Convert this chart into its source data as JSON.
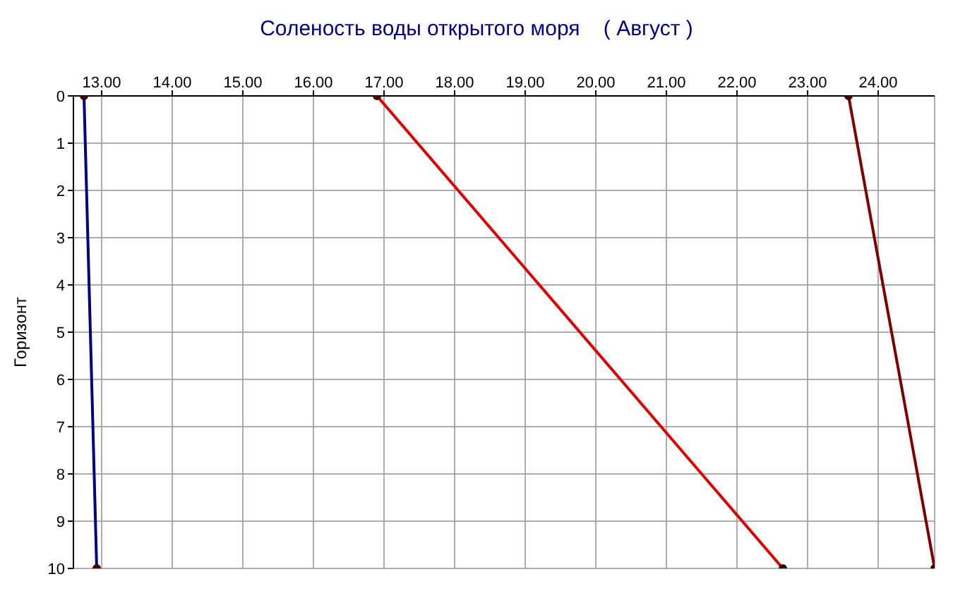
{
  "chart_data": {
    "type": "line",
    "title": "Соленость воды открытого моря    ( Август )",
    "ylabel": "Горизонт",
    "series": [
      {
        "color": "#000080",
        "x": [
          12.75,
          12.93
        ],
        "values": [
          0,
          10
        ]
      },
      {
        "color": "#e00000",
        "x": [
          16.9,
          22.65
        ],
        "values": [
          0,
          10
        ]
      },
      {
        "color": "#800000",
        "x": [
          23.58,
          24.8
        ],
        "values": [
          0,
          10
        ]
      }
    ],
    "xlim": [
      12.6,
      24.8
    ],
    "xticks": [
      {
        "value": 13,
        "label": "13.00"
      },
      {
        "value": 14,
        "label": "14.00"
      },
      {
        "value": 15,
        "label": "15.00"
      },
      {
        "value": 16,
        "label": "16.00"
      },
      {
        "value": 17,
        "label": "17.00"
      },
      {
        "value": 18,
        "label": "18.00"
      },
      {
        "value": 19,
        "label": "19.00"
      },
      {
        "value": 20,
        "label": "20.00"
      },
      {
        "value": 21,
        "label": "21.00"
      },
      {
        "value": 22,
        "label": "22.00"
      },
      {
        "value": 23,
        "label": "23.00"
      },
      {
        "value": 24,
        "label": "24.00"
      }
    ],
    "ylim": [
      10,
      0
    ],
    "yticks": [
      0,
      1,
      2,
      3,
      4,
      5,
      6,
      7,
      8,
      9,
      10
    ],
    "grid": true,
    "legend": false,
    "marker": "circle",
    "line_style": "solid"
  }
}
